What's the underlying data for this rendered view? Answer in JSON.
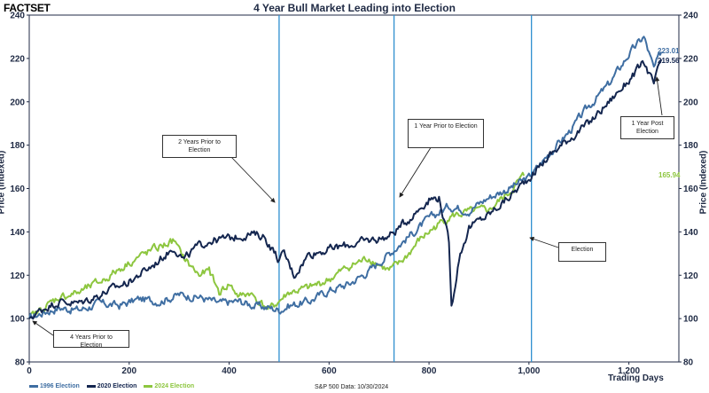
{
  "brand": "FACTSET",
  "colors": {
    "brand": "#2aa7d8",
    "axis_text": "#1f2a44",
    "election_line": "#2e8fcf",
    "s1996": "#3f6ea2",
    "s2020": "#14264f",
    "s2024": "#8dc63f"
  },
  "legend": {
    "s1996": "1996 Election",
    "s2020": "2020 Election",
    "s2024": "2024 Election"
  },
  "source": "S&P 500 Data: 10/30/2024",
  "annotations": {
    "two_years": "2 Years Prior to Election",
    "one_year": "1 Year Prior to Election",
    "election": "Election",
    "four_years": "4 Years Prior to Election",
    "post_line1": "1 Year Post",
    "post_line2": "Election"
  },
  "end_labels": {
    "s1996": "223.01",
    "s2020": "219.56",
    "s2024": "165.94"
  },
  "chart_data": {
    "type": "line",
    "title": "4 Year Bull Market Leading into Election",
    "xlabel": "Trading Days",
    "ylabel": "Price (Indexed)",
    "xlim": [
      0,
      1300
    ],
    "ylim": [
      80,
      240
    ],
    "x_ticks": [
      0,
      200,
      400,
      600,
      800,
      1000,
      1200
    ],
    "x_tick_labels": [
      "0",
      "200",
      "400",
      "600",
      "800",
      "1,000",
      "1,200"
    ],
    "y_ticks": [
      80,
      100,
      120,
      140,
      160,
      180,
      200,
      220,
      240
    ],
    "election_markers_x": [
      500,
      730,
      1005
    ],
    "legend_position": "bottom-left",
    "grid": false,
    "series": [
      {
        "name": "1996 Election",
        "color_key": "s1996",
        "x": [
          0,
          30,
          60,
          100,
          140,
          180,
          220,
          260,
          300,
          340,
          380,
          420,
          450,
          480,
          500,
          520,
          560,
          600,
          640,
          680,
          720,
          740,
          760,
          800,
          840,
          880,
          920,
          960,
          1000,
          1040,
          1080,
          1120,
          1160,
          1200,
          1230,
          1250,
          1265
        ],
        "y": [
          100,
          103,
          105,
          104,
          107,
          106,
          109,
          108,
          111,
          110,
          107,
          108,
          106,
          105,
          104,
          106,
          108,
          113,
          116,
          122,
          130,
          134,
          138,
          146,
          152,
          150,
          156,
          160,
          165,
          176,
          186,
          198,
          208,
          222,
          230,
          215,
          223.01
        ]
      },
      {
        "name": "2020 Election",
        "color_key": "s2020",
        "x": [
          0,
          30,
          60,
          100,
          150,
          200,
          250,
          290,
          300,
          310,
          330,
          360,
          400,
          440,
          470,
          500,
          510,
          530,
          560,
          600,
          640,
          680,
          720,
          760,
          790,
          800,
          820,
          840,
          845,
          860,
          880,
          920,
          960,
          1000,
          1040,
          1080,
          1120,
          1160,
          1200,
          1230,
          1250,
          1265
        ],
        "y": [
          100,
          105,
          108,
          107,
          112,
          117,
          125,
          133,
          130,
          127,
          132,
          136,
          137,
          139,
          138,
          127,
          130,
          120,
          130,
          132,
          134,
          136,
          138,
          146,
          153,
          155,
          156,
          135,
          105,
          128,
          142,
          148,
          156,
          165,
          175,
          183,
          190,
          200,
          210,
          218,
          208,
          219.56
        ]
      },
      {
        "name": "2024 Election",
        "color_key": "s2024",
        "x": [
          0,
          30,
          60,
          100,
          150,
          200,
          250,
          290,
          300,
          320,
          340,
          360,
          380,
          400,
          420,
          440,
          460,
          480,
          490,
          500,
          520,
          560,
          600,
          640,
          680,
          720,
          740,
          760,
          780,
          800,
          840,
          880,
          920,
          960,
          990
        ],
        "y": [
          100,
          105,
          110,
          112,
          118,
          126,
          132,
          136,
          131,
          125,
          120,
          122,
          112,
          116,
          110,
          112,
          108,
          104,
          106,
          108,
          112,
          114,
          118,
          124,
          128,
          122,
          125,
          130,
          136,
          140,
          147,
          149,
          150,
          158,
          165.94
        ]
      }
    ]
  }
}
